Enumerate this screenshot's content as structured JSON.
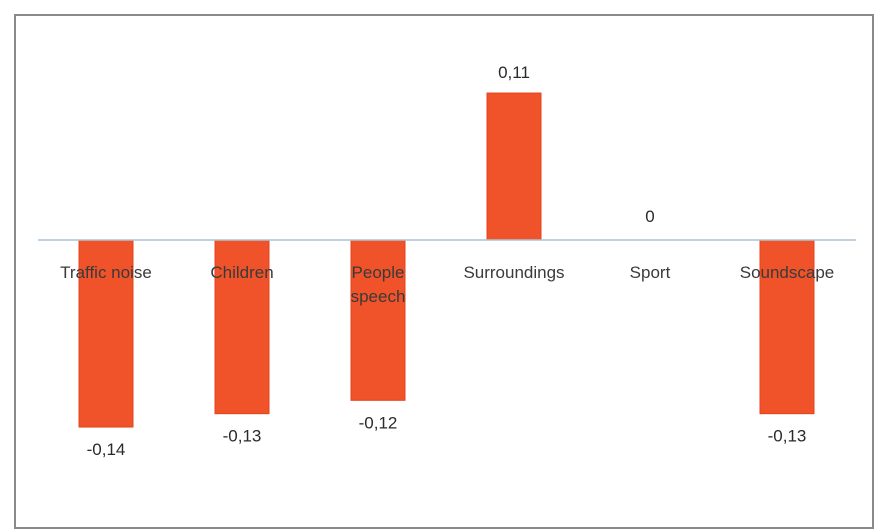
{
  "chart_data": {
    "type": "bar",
    "categories": [
      [
        "Traffic noise"
      ],
      [
        "Children"
      ],
      [
        "People",
        "speech"
      ],
      [
        "Surroundings"
      ],
      [
        "Sport"
      ],
      [
        "Soundscape"
      ]
    ],
    "values": [
      -0.14,
      -0.13,
      -0.12,
      0.11,
      0,
      -0.13
    ],
    "data_labels": [
      "-0,14",
      "-0,13",
      "-0,12",
      "0,11",
      "0",
      "-0,13"
    ],
    "ylim": [
      -0.14,
      0.11
    ],
    "grid": false,
    "legend": "none",
    "bar_color": "#f0522a",
    "axis_color": "#a9c4d8"
  }
}
